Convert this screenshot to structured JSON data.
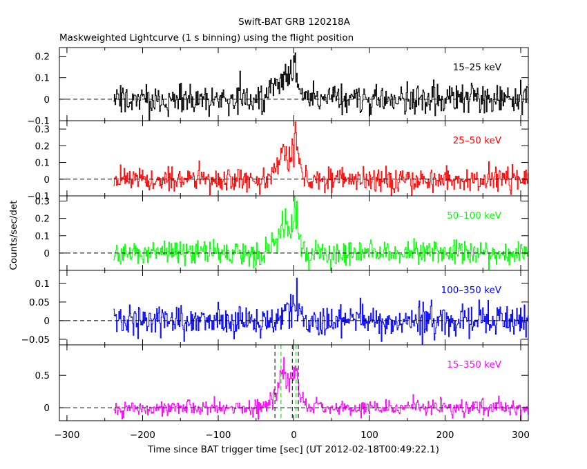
{
  "title": "Swift-BAT GRB 120218A",
  "subtitle": "Maskweighted Lightcurve (1 s binning) using the flight position",
  "xlabel": "Time since BAT trigger time [sec] (UT 2012-02-18T00:49:22.1)",
  "ylabel": "Counts/sec/det",
  "chart_data": {
    "type": "line",
    "title": "Swift-BAT GRB 120218A",
    "subtitle": "Maskweighted Lightcurve (1 s binning) using the flight position",
    "xlabel": "Time since BAT trigger time [sec] (UT 2012-02-18T00:49:22.1)",
    "ylabel": "Counts/sec/det",
    "xlim": [
      -310,
      310
    ],
    "xticks": [
      -300,
      -200,
      -100,
      0,
      100,
      200,
      300
    ],
    "data_range": [
      -238,
      310
    ],
    "grid": false,
    "panels": [
      {
        "band": "15-25 keV",
        "label": "15–25 keV",
        "color": "#000000",
        "ylim": [
          -0.1,
          0.24
        ],
        "yticks": [
          -0.1,
          0,
          0.1,
          0.2
        ],
        "yticklabels": [
          "−0.1",
          "0",
          "0.1",
          "0.2"
        ],
        "noise": 0.035,
        "seed": 11,
        "peaks": [
          [
            -25,
            0.05,
            10
          ],
          [
            -12,
            0.08,
            6
          ],
          [
            -4,
            0.1,
            1.5
          ],
          [
            1,
            0.15,
            2.5
          ],
          [
            8,
            0.04,
            4
          ]
        ]
      },
      {
        "band": "25-50 keV",
        "label": "25–50 keV",
        "color": "#ff0000",
        "ylim": [
          -0.1,
          0.35
        ],
        "yticks": [
          -0.1,
          0,
          0.1,
          0.2,
          0.3
        ],
        "yticklabels": [
          "−0.1",
          "0",
          "0.1",
          "0.2",
          "0.3"
        ],
        "noise": 0.035,
        "seed": 23,
        "peaks": [
          [
            -22,
            0.06,
            10
          ],
          [
            -12,
            0.14,
            5
          ],
          [
            -3,
            0.1,
            1.5
          ],
          [
            2,
            0.22,
            2.5
          ],
          [
            8,
            0.06,
            4
          ]
        ]
      },
      {
        "band": "50-100 keV",
        "label": "50–100 keV",
        "color": "#00ff00",
        "ylim": [
          -0.1,
          0.33
        ],
        "yticks": [
          0,
          0.1,
          0.2,
          0.3
        ],
        "yticklabels": [
          "0",
          "0.1",
          "0.2",
          "0.3"
        ],
        "noise": 0.035,
        "seed": 37,
        "peaks": [
          [
            -22,
            0.07,
            10
          ],
          [
            -12,
            0.13,
            5
          ],
          [
            -3,
            0.09,
            1.5
          ],
          [
            2,
            0.22,
            2.5
          ],
          [
            8,
            0.06,
            4
          ]
        ]
      },
      {
        "band": "100-350 keV",
        "label": "100–350 keV",
        "color": "#0000ff",
        "ylim": [
          -0.065,
          0.135
        ],
        "yticks": [
          -0.05,
          0,
          0.05,
          0.1
        ],
        "yticklabels": [
          "−0.05",
          "0",
          "0.05",
          "0.1"
        ],
        "noise": 0.022,
        "seed": 53,
        "peaks": [
          [
            -12,
            0.03,
            5
          ],
          [
            2,
            0.08,
            2.5
          ],
          [
            8,
            0.02,
            4
          ]
        ]
      },
      {
        "band": "15-350 keV",
        "label": "15–350 keV",
        "color": "#ff00ff",
        "ylim": [
          -0.2,
          0.97
        ],
        "yticks": [
          0,
          0.5
        ],
        "yticklabels": [
          "0",
          "0.5"
        ],
        "noise": 0.06,
        "seed": 71,
        "peaks": [
          [
            -22,
            0.2,
            10
          ],
          [
            -12,
            0.42,
            5
          ],
          [
            -3,
            0.3,
            1.5
          ],
          [
            2,
            0.55,
            2.5
          ],
          [
            8,
            0.15,
            4
          ]
        ],
        "markers": [
          {
            "x": -25,
            "color": "#000000"
          },
          {
            "x": -17,
            "color": "#00cc00"
          },
          {
            "x": -2,
            "color": "#000000"
          },
          {
            "x": 3,
            "color": "#00cc00"
          },
          {
            "x": 6,
            "color": "#000000"
          }
        ]
      }
    ]
  }
}
